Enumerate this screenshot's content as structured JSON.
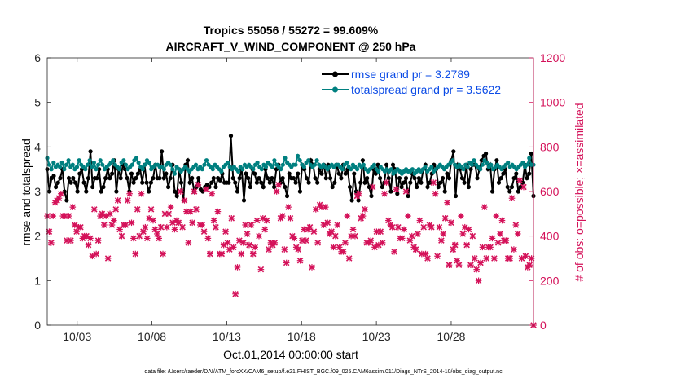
{
  "chart_data": {
    "type": "line",
    "title_line1": "Tropics 55056 / 55272 = 99.609%",
    "title_line2": "AIRCRAFT_V_WIND_COMPONENT @ 250 hPa",
    "ylabel_left": "rmse and totalspread",
    "ylabel_right": "# of obs: o=possible; ×=assimilated",
    "xlabel": "Oct.01,2014 00:00:00 start",
    "footer": "data file: /Users/raeder/DAI/ATM_forcXX/CAM6_setup/f.e21.FHIST_BGC.f09_025.CAM6assim.011/Diags_NTrS_2014-10/obs_diag_output.nc",
    "xlim": [
      1,
      33.5
    ],
    "ylim_left": [
      0,
      6
    ],
    "ylim_right": [
      0,
      1200
    ],
    "yticks_left": [
      "0",
      "1",
      "2",
      "3",
      "4",
      "5",
      "6"
    ],
    "yticks_right": [
      "0",
      "200",
      "400",
      "600",
      "800",
      "1000",
      "1200"
    ],
    "xticks": [
      {
        "day": 3,
        "label": "10/03"
      },
      {
        "day": 8,
        "label": "10/08"
      },
      {
        "day": 13,
        "label": "10/13"
      },
      {
        "day": 18,
        "label": "10/18"
      },
      {
        "day": 23,
        "label": "10/23"
      },
      {
        "day": 28,
        "label": "10/28"
      }
    ],
    "series": [
      {
        "name": "rmse",
        "legend": "rmse grand pr = 3.2789",
        "color": "#000000",
        "axis": "left",
        "values": [
          3.5,
          3.0,
          3.3,
          3.35,
          3.1,
          3.2,
          3.3,
          3.5,
          3.0,
          2.8,
          3.3,
          3.2,
          3.3,
          3.2,
          3.0,
          3.4,
          3.5,
          3.2,
          3.0,
          3.3,
          3.9,
          3.1,
          3.3,
          3.3,
          3.5,
          3.0,
          3.1,
          3.3,
          3.5,
          3.3,
          3.4,
          3.7,
          3.0,
          3.5,
          3.3,
          3.6,
          3.5,
          3.3,
          3.0,
          3.4,
          3.2,
          3.3,
          3.4,
          3.5,
          3.2,
          3.6,
          3.2,
          3.0,
          3.2,
          3.3,
          3.6,
          3.3,
          3.3,
          3.9,
          3.3,
          3.4,
          3.1,
          3.3,
          3.6,
          3.0,
          2.9,
          3.5,
          3.2,
          2.8,
          3.6,
          3.7,
          3.2,
          3.3,
          3.0,
          3.1,
          3.3,
          3.05,
          3.0,
          3.1,
          3.15,
          3.1,
          3.2,
          3.3,
          3.1,
          3.3,
          3.25,
          3.4,
          3.2,
          3.2,
          3.2,
          4.25,
          3.3,
          3.2,
          3.0,
          3.3,
          3.5,
          2.8,
          3.4,
          3.3,
          3.1,
          3.5,
          3.4,
          3.2,
          3.3,
          3.2,
          3.1,
          3.5,
          3.3,
          3.2,
          3.3,
          3.1,
          3.5,
          3.6,
          3.2,
          3.3,
          3.1,
          2.9,
          3.4,
          3.3,
          3.3,
          3.2,
          3.4,
          3.0,
          3.6,
          3.5,
          3.3,
          3.2,
          3.7,
          3.6,
          3.3,
          3.2,
          3.5,
          3.4,
          3.6,
          3.3,
          3.6,
          3.3,
          3.1,
          3.2,
          3.6,
          3.4,
          3.3,
          3.6,
          3.4,
          3.5,
          3.1,
          2.8,
          3.4,
          3.0,
          2.8,
          3.2,
          3.7,
          3.2,
          3.3,
          3.1,
          2.9,
          3.5,
          3.4,
          3.6,
          3.3,
          3.1,
          3.2,
          3.6,
          3.3,
          3.0,
          3.6,
          3.5,
          2.95,
          3.3,
          3.1,
          3.2,
          3.3,
          2.9,
          3.2,
          3.4,
          3.3,
          3.1,
          3.3,
          3.2,
          3.5,
          3.6,
          3.1,
          3.2,
          3.4,
          3.6,
          3.5,
          3.1,
          3.2,
          3.3,
          3.0,
          3.4,
          3.3,
          3.7,
          3.9,
          2.9,
          3.6,
          3.5,
          3.3,
          3.2,
          3.6,
          3.1,
          3.5,
          3.6,
          3.6,
          3.3,
          3.5,
          3.7,
          3.8,
          3.85,
          3.5,
          3.6,
          3.0,
          3.5,
          3.7,
          3.2,
          3.3,
          3.4,
          3.5,
          3.1,
          3.0,
          3.1,
          3.3,
          3.4,
          3.0,
          3.1,
          3.2,
          3.6,
          3.3,
          3.4,
          3.85,
          2.9
        ]
      },
      {
        "name": "totalspread",
        "legend": "totalspread grand pr = 3.5622",
        "color": "#008080",
        "axis": "left",
        "values": [
          3.75,
          3.6,
          3.5,
          3.65,
          3.55,
          3.6,
          3.55,
          3.65,
          3.5,
          3.6,
          3.7,
          3.55,
          3.6,
          3.5,
          3.55,
          3.7,
          3.6,
          3.55,
          3.5,
          3.6,
          3.7,
          3.55,
          3.65,
          3.5,
          3.6,
          3.7,
          3.6,
          3.5,
          3.55,
          3.6,
          3.65,
          3.7,
          3.6,
          3.55,
          3.5,
          3.65,
          3.7,
          3.6,
          3.5,
          3.55,
          3.6,
          3.7,
          3.75,
          3.65,
          3.55,
          3.5,
          3.6,
          3.7,
          3.65,
          3.5,
          3.55,
          3.6,
          3.6,
          3.55,
          3.55,
          3.5,
          3.6,
          3.65,
          3.6,
          3.5,
          3.4,
          3.55,
          3.5,
          3.45,
          3.5,
          3.55,
          3.5,
          3.45,
          3.5,
          3.55,
          3.6,
          3.5,
          3.55,
          3.5,
          3.6,
          3.7,
          3.6,
          3.55,
          3.5,
          3.6,
          3.55,
          3.5,
          3.45,
          3.55,
          3.6,
          3.65,
          3.55,
          3.5,
          3.55,
          3.5,
          3.45,
          3.55,
          3.5,
          3.6,
          3.55,
          3.6,
          3.55,
          3.5,
          3.6,
          3.65,
          3.55,
          3.5,
          3.6,
          3.55,
          3.65,
          3.6,
          3.55,
          3.7,
          3.6,
          3.55,
          3.5,
          3.6,
          3.75,
          3.65,
          3.6,
          3.55,
          3.6,
          3.6,
          3.8,
          3.7,
          3.6,
          3.55,
          3.65,
          3.7,
          3.6,
          3.55,
          3.6,
          3.7,
          3.6,
          3.55,
          3.6,
          3.55,
          3.5,
          3.55,
          3.6,
          3.55,
          3.6,
          3.6,
          3.55,
          3.5,
          3.6,
          3.65,
          3.55,
          3.5,
          3.6,
          3.55,
          3.5,
          3.6,
          3.55,
          3.6,
          3.5,
          3.45,
          3.5,
          3.55,
          3.6,
          3.5,
          3.45,
          3.55,
          3.5,
          3.45,
          3.5,
          3.45,
          3.5,
          3.4,
          3.45,
          3.5,
          3.45,
          3.4,
          3.45,
          3.5,
          3.45,
          3.45,
          3.5,
          3.4,
          3.45,
          3.5,
          3.45,
          3.5,
          3.55,
          3.45,
          3.5,
          3.55,
          3.45,
          3.5,
          3.55,
          3.6,
          3.55,
          3.5,
          3.55,
          3.6,
          3.65,
          3.7,
          3.6,
          3.55,
          3.6,
          3.55,
          3.5,
          3.6,
          3.55,
          3.65,
          3.6,
          3.7,
          3.6,
          3.55,
          3.5,
          3.6,
          3.7,
          3.65,
          3.55,
          3.6,
          3.5,
          3.55,
          3.6,
          3.55,
          3.5,
          3.55,
          3.6,
          3.65,
          3.55,
          3.6,
          3.55,
          3.5,
          3.55,
          3.6,
          3.65,
          3.55,
          3.6,
          3.75,
          3.6,
          3.6
        ]
      },
      {
        "name": "obs",
        "legend": "",
        "color": "#d41159",
        "axis": "right",
        "values": [
          490,
          420,
          370,
          490,
          550,
          560,
          570,
          590,
          490,
          490,
          380,
          490,
          380,
          530,
          450,
          420,
          440,
          440,
          390,
          400,
          400,
          360,
          390,
          310,
          520,
          320,
          380,
          490,
          500,
          450,
          490,
          300,
          500,
          450,
          470,
          520,
          560,
          430,
          400,
          450,
          450,
          560,
          590,
          460,
          390,
          320,
          520,
          400,
          590,
          420,
          440,
          390,
          480,
          520,
          470,
          430,
          410,
          390,
          440,
          320,
          500,
          440,
          500,
          530,
          460,
          430,
          470,
          460,
          600,
          440,
          560,
          510,
          370,
          510,
          460,
          600,
          520,
          630,
          450,
          450,
          420,
          610,
          390,
          320,
          590,
          470,
          440,
          510,
          320,
          320,
          360,
          420,
          370,
          340,
          480,
          350,
          140,
          260,
          380,
          320,
          370,
          450,
          410,
          360,
          450,
          320,
          350,
          470,
          400,
          250,
          480,
          430,
          470,
          340,
          370,
          360,
          370,
          600,
          630,
          480,
          490,
          340,
          280,
          530,
          480,
          400,
          390,
          350,
          340,
          290,
          380,
          430,
          380,
          430,
          440,
          260,
          420,
          520,
          370,
          540,
          530,
          450,
          530,
          460,
          410,
          420,
          350,
          400,
          450,
          350,
          330,
          330,
          370,
          490,
          300,
          400,
          430,
          400,
          580,
          590,
          480,
          490,
          520,
          370,
          370,
          380,
          620,
          350,
          420,
          360,
          420,
          370,
          590,
          640,
          470,
          450,
          440,
          330,
          610,
          440,
          390,
          390,
          430,
          600,
          490,
          380,
          400,
          350,
          340,
          410,
          470,
          320,
          440,
          320,
          300,
          450,
          440,
          640,
          590,
          310,
          440,
          380,
          410,
          480,
          550,
          270,
          460,
          340,
          360,
          290,
          270,
          490,
          410,
          440,
          360,
          430,
          270,
          400,
          300,
          250,
          200,
          280,
          350,
          530,
          300,
          350,
          350,
          390,
          300,
          490,
          370,
          410,
          470,
          380,
          380,
          300,
          300,
          570,
          340,
          450,
          410,
          650,
          300,
          620,
          310,
          260,
          270,
          300,
          0
        ]
      }
    ]
  }
}
